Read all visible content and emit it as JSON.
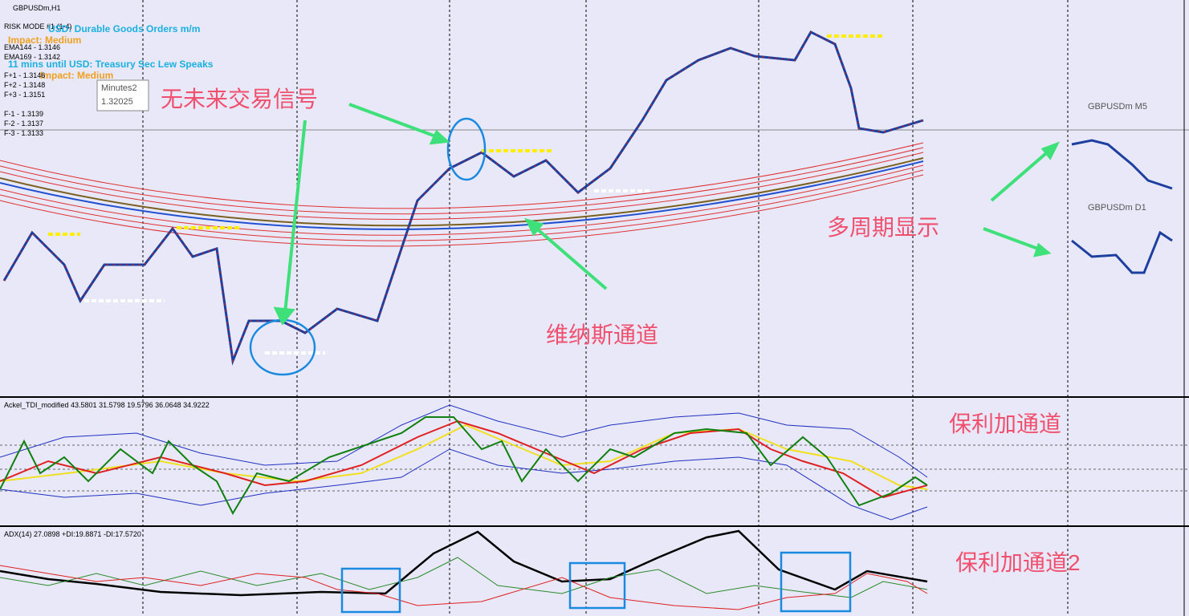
{
  "header": {
    "symbol": "GBPUSDm,H1"
  },
  "info": {
    "risk_mode": "RISK MODE #1 (1-4)",
    "news1": "USD: Durable Goods Orders m/m",
    "impact1": "Impact: Medium",
    "ema144": "EMA144 - 1.3146",
    "ema169": "EMA169 - 1.3142",
    "news2": "11 mins until USD: Treasury Sec Lew Speaks",
    "impact2": "Impact: Medium",
    "fplus": [
      "F+1 - 1.3146",
      "F+2 - 1.3148",
      "F+3 - 1.3151"
    ],
    "fminus": [
      "F-1 - 1.3139",
      "F-2 - 1.3137",
      "F-3 - 1.3133"
    ]
  },
  "tooltip": {
    "title": "Minutes2",
    "value": "1.32025"
  },
  "annotations": {
    "no_signal": "无未来交易信号",
    "venus": "维纳斯通道",
    "multi": "多周期显示",
    "bollinger": "保利加通道",
    "bollinger2": "保利加通道2"
  },
  "mini_charts": [
    "GBPUSDm M5",
    "GBPUSDm D1"
  ],
  "panels": {
    "tdi": "Ackel_TDI_modified 43.5801 31.5798 19.5796 36.0648 34.9222",
    "adx": "ADX(14) 27.0898 +DI:19.8871 -DI:17.5720"
  }
}
